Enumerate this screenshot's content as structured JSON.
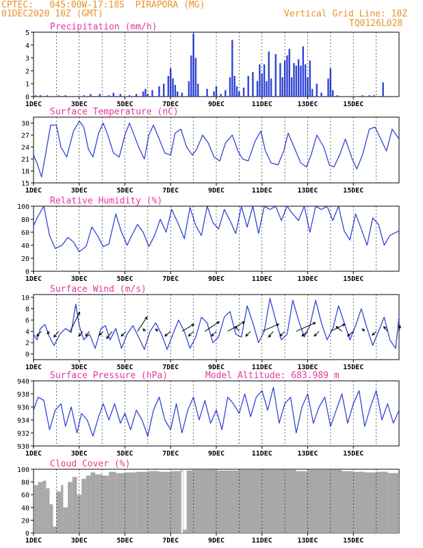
{
  "header": {
    "station": "CPTEC:   045:00W-17:18S  PIRAPORA (MG)",
    "run_date": "01DEC2020 10Z (GMT)",
    "grid_note": "Vertical Grid Line: 10Z",
    "model_code": "TQ0126L028"
  },
  "colors": {
    "header": "#e8902a",
    "title": "#e8359a",
    "line": "#2f43d6",
    "bar": "#2f43d6",
    "cloud": "#a8a8a8"
  },
  "x_ticks": [
    "1DEC",
    "3DEC",
    "5DEC",
    "7DEC",
    "9DEC",
    "11DEC",
    "13DEC",
    "15DEC"
  ],
  "chart_data": [
    {
      "id": "precip",
      "type": "bar",
      "title": "Precipitation (mm/h)",
      "ylim": [
        0,
        5
      ],
      "yticks": [
        0,
        1,
        2,
        3,
        4,
        5
      ],
      "x_days": [
        0.1,
        0.3,
        0.6,
        1.1,
        1.4,
        2.2,
        2.5,
        2.9,
        3.3,
        3.5,
        3.8,
        4.2,
        4.5,
        4.8,
        4.9,
        5.0,
        5.2,
        5.5,
        5.7,
        5.9,
        6.0,
        6.1,
        6.2,
        6.3,
        6.5,
        6.8,
        6.9,
        7.0,
        7.1,
        7.2,
        7.6,
        7.9,
        8.0,
        8.2,
        8.4,
        8.6,
        8.7,
        8.8,
        8.9,
        9.0,
        9.2,
        9.4,
        9.6,
        9.8,
        9.9,
        10.0,
        10.1,
        10.2,
        10.3,
        10.4,
        10.6,
        10.8,
        10.9,
        11.0,
        11.1,
        11.2,
        11.3,
        11.4,
        11.5,
        11.6,
        11.7,
        11.8,
        11.9,
        12.0,
        12.1,
        12.2,
        12.4,
        12.6,
        12.9,
        13.0,
        13.1,
        13.3,
        14.4,
        14.7,
        14.9,
        15.3
      ],
      "values": [
        0.1,
        0.1,
        0.1,
        0.1,
        0.1,
        0.1,
        0.2,
        0.2,
        0.1,
        0.3,
        0.2,
        0.1,
        0.2,
        0.4,
        0.6,
        0.2,
        0.5,
        0.8,
        1.0,
        1.6,
        2.2,
        1.4,
        0.9,
        0.4,
        0.3,
        1.2,
        3.2,
        4.9,
        3.0,
        1.0,
        0.6,
        0.4,
        0.8,
        0.2,
        0.5,
        1.5,
        4.4,
        1.6,
        0.8,
        0.4,
        0.7,
        1.6,
        1.9,
        1.2,
        2.5,
        1.8,
        2.5,
        1.2,
        3.5,
        1.4,
        3.3,
        2.6,
        1.5,
        2.8,
        3.2,
        3.7,
        1.5,
        2.6,
        2.4,
        2.9,
        2.4,
        3.9,
        2.5,
        1.5,
        2.8,
        0.6,
        1.0,
        0.3,
        1.4,
        2.2,
        0.5,
        0.1,
        0.1,
        0.1,
        0.1,
        1.1
      ]
    },
    {
      "id": "temp",
      "type": "line",
      "title": "Surface Temperature (nC)",
      "ylim": [
        15,
        31.5
      ],
      "yticks": [
        15,
        18,
        21,
        24,
        27,
        30
      ],
      "x_days": [
        0,
        0.15,
        0.35,
        0.55,
        0.75,
        1.0,
        1.2,
        1.45,
        1.75,
        2.0,
        2.2,
        2.4,
        2.6,
        2.85,
        3.05,
        3.25,
        3.5,
        3.75,
        4.0,
        4.2,
        4.4,
        4.6,
        4.85,
        5.05,
        5.25,
        5.5,
        5.75,
        6.0,
        6.2,
        6.45,
        6.7,
        6.95,
        7.15,
        7.4,
        7.65,
        7.9,
        8.15,
        8.4,
        8.7,
        8.95,
        9.15,
        9.4,
        9.7,
        9.95,
        10.15,
        10.4,
        10.7,
        10.95,
        11.15,
        11.4,
        11.7,
        11.95,
        12.15,
        12.4,
        12.7,
        12.95,
        13.15,
        13.4,
        13.65,
        13.95,
        14.15,
        14.4,
        14.7,
        14.95,
        15.2,
        15.45,
        15.7,
        16.0
      ],
      "values": [
        22,
        20,
        16.5,
        23,
        29.5,
        29.5,
        24,
        21.5,
        28,
        30.5,
        29,
        23.5,
        21.5,
        27.5,
        30,
        27,
        22.5,
        21.5,
        27,
        30,
        27,
        24,
        21,
        27,
        29.5,
        26,
        22.5,
        22,
        27.5,
        28.5,
        24,
        22,
        23.5,
        27,
        25,
        21.5,
        20.5,
        25,
        27,
        23,
        21,
        20.5,
        25.5,
        28,
        23,
        20,
        19.5,
        23,
        27.5,
        24,
        20,
        19,
        22,
        27,
        24,
        19.5,
        19,
        22,
        26,
        21,
        18.5,
        22,
        28.5,
        29,
        26,
        23,
        28.5,
        26
      ]
    },
    {
      "id": "rh",
      "type": "line",
      "title": "Relative Humidity (%)",
      "ylim": [
        0,
        100
      ],
      "yticks": [
        0,
        20,
        40,
        60,
        80,
        100
      ],
      "x_days": [
        0,
        0.2,
        0.45,
        0.7,
        0.95,
        1.25,
        1.5,
        1.75,
        2.0,
        2.3,
        2.55,
        2.8,
        3.05,
        3.3,
        3.6,
        3.85,
        4.1,
        4.3,
        4.55,
        4.8,
        5.05,
        5.3,
        5.55,
        5.8,
        6.05,
        6.35,
        6.6,
        6.85,
        7.1,
        7.35,
        7.6,
        7.85,
        8.1,
        8.35,
        8.6,
        8.85,
        9.1,
        9.35,
        9.6,
        9.85,
        10.1,
        10.35,
        10.6,
        10.85,
        11.1,
        11.35,
        11.6,
        11.85,
        12.1,
        12.35,
        12.6,
        12.85,
        13.1,
        13.35,
        13.6,
        13.85,
        14.1,
        14.35,
        14.6,
        14.85,
        15.1,
        15.35,
        15.6,
        16.0
      ],
      "values": [
        70,
        85,
        100,
        55,
        35,
        40,
        52,
        45,
        30,
        38,
        68,
        55,
        38,
        42,
        88,
        60,
        40,
        55,
        72,
        60,
        38,
        55,
        80,
        60,
        95,
        72,
        50,
        98,
        70,
        55,
        100,
        75,
        65,
        95,
        78,
        58,
        100,
        68,
        100,
        58,
        100,
        95,
        100,
        78,
        100,
        88,
        78,
        100,
        60,
        100,
        95,
        100,
        78,
        100,
        62,
        48,
        88,
        65,
        40,
        82,
        72,
        40,
        55,
        62
      ]
    },
    {
      "id": "wind",
      "type": "line",
      "title": "Surface Wind (m/s)",
      "ylim": [
        -1,
        10.5
      ],
      "yticks": [
        0,
        2,
        4,
        6,
        8,
        10
      ],
      "x_days": [
        0,
        0.15,
        0.3,
        0.5,
        0.7,
        0.9,
        1.15,
        1.4,
        1.65,
        1.85,
        2.0,
        2.2,
        2.45,
        2.7,
        2.95,
        3.15,
        3.35,
        3.6,
        3.85,
        4.1,
        4.35,
        4.6,
        4.85,
        5.1,
        5.35,
        5.6,
        5.85,
        6.1,
        6.35,
        6.6,
        6.85,
        7.1,
        7.35,
        7.6,
        7.85,
        8.1,
        8.35,
        8.6,
        8.85,
        9.1,
        9.35,
        9.6,
        9.85,
        10.1,
        10.35,
        10.6,
        10.85,
        11.1,
        11.35,
        11.6,
        11.85,
        12.1,
        12.35,
        12.6,
        12.85,
        13.1,
        13.35,
        13.6,
        13.85,
        14.1,
        14.35,
        14.6,
        14.85,
        15.1,
        15.35,
        15.6,
        15.85,
        16.0
      ],
      "values": [
        3.5,
        2.5,
        4.5,
        5.2,
        3.0,
        1.5,
        3.5,
        4.5,
        3.8,
        8.8,
        5.0,
        2.5,
        3.5,
        1.0,
        4.5,
        5.0,
        2.5,
        4.5,
        1.0,
        3.5,
        5.0,
        3.0,
        0.8,
        4.0,
        5.5,
        3.5,
        0.8,
        3.5,
        6.0,
        4.0,
        1.0,
        3.0,
        6.5,
        5.5,
        2.0,
        3.0,
        6.5,
        7.5,
        3.5,
        3.0,
        8.5,
        5.5,
        2.0,
        4.0,
        9.8,
        6.0,
        2.5,
        3.5,
        9.5,
        6.0,
        3.0,
        5.0,
        9.5,
        5.5,
        2.5,
        4.5,
        8.5,
        5.5,
        2.5,
        5.0,
        8.0,
        4.5,
        1.5,
        4.0,
        6.5,
        2.5,
        1.0,
        6.5
      ],
      "arrows": {
        "x_days": [
          0.35,
          0.7,
          1.1,
          1.6,
          2.15,
          2.45,
          3.05,
          3.45,
          4.05,
          4.55,
          4.9,
          5.45,
          6.0,
          6.5,
          7.0,
          7.5,
          8.0,
          8.5,
          9.0,
          9.5,
          10.0,
          10.5,
          11.0,
          11.5,
          12.0,
          12.5,
          13.0,
          13.5,
          14.0,
          14.5,
          15.0,
          15.5,
          16.0
        ],
        "u": [
          -1,
          -0.5,
          -1,
          2,
          -0.8,
          -0.8,
          -0.8,
          -1.2,
          -1,
          2,
          -0.5,
          -0.5,
          -1.2,
          2.5,
          -1,
          3,
          -1,
          3.5,
          -0.8,
          -1,
          3.5,
          -1,
          -1,
          4,
          -1.2,
          -1,
          3,
          -1.2,
          -1.2,
          -0.5,
          -0.8,
          -0.8,
          0.2
        ],
        "v": [
          -1,
          -0.5,
          -1.2,
          4,
          -1,
          -1,
          -0.8,
          -1.5,
          -1,
          3,
          0.5,
          0.5,
          -1,
          1.5,
          -1,
          2,
          -1,
          2,
          1,
          -1,
          1.5,
          -1.2,
          -1,
          1.8,
          -1,
          -1,
          1.5,
          1,
          -1,
          0.5,
          -0.8,
          1,
          1.2
        ]
      }
    },
    {
      "id": "pres",
      "type": "line",
      "title": "Surface Pressure (hPa)",
      "annotation": "Model Altitude: 683.989 m",
      "ylim": [
        930,
        940
      ],
      "yticks": [
        930,
        932,
        934,
        936,
        938,
        940
      ],
      "x_days": [
        0,
        0.2,
        0.45,
        0.7,
        0.95,
        1.2,
        1.4,
        1.65,
        1.9,
        2.1,
        2.35,
        2.6,
        2.85,
        3.05,
        3.3,
        3.55,
        3.8,
        4.0,
        4.25,
        4.5,
        4.75,
        5.0,
        5.25,
        5.5,
        5.75,
        6.0,
        6.25,
        6.5,
        6.75,
        7.0,
        7.25,
        7.5,
        7.75,
        8.0,
        8.25,
        8.5,
        8.75,
        9.0,
        9.25,
        9.5,
        9.75,
        10.0,
        10.25,
        10.5,
        10.75,
        11.0,
        11.25,
        11.5,
        11.75,
        12.0,
        12.25,
        12.5,
        12.75,
        13.0,
        13.25,
        13.5,
        13.75,
        14.0,
        14.25,
        14.5,
        14.75,
        15.0,
        15.25,
        15.5,
        15.75,
        16.0
      ],
      "values": [
        935.5,
        937.5,
        937.0,
        932.5,
        935.5,
        936.5,
        933.0,
        936.0,
        932.0,
        935.0,
        934.0,
        931.5,
        934.5,
        936.5,
        934.0,
        936.5,
        933.5,
        935.0,
        932.5,
        935.5,
        934.0,
        931.5,
        935.5,
        937.5,
        934.0,
        932.5,
        936.5,
        932.0,
        935.5,
        937.5,
        934.0,
        937.0,
        933.5,
        935.5,
        932.5,
        937.5,
        936.5,
        935.0,
        938.0,
        934.5,
        937.5,
        938.5,
        935.5,
        939.0,
        933.5,
        936.5,
        937.5,
        932.0,
        936.0,
        938.0,
        933.5,
        936.0,
        937.5,
        933.0,
        935.5,
        938.0,
        933.5,
        936.5,
        938.5,
        933.0,
        936.0,
        938.5,
        934.0,
        936.5,
        933.5,
        935.5
      ]
    },
    {
      "id": "cloud",
      "type": "area",
      "title": "Cloud Cover (%)",
      "ylim": [
        0,
        100
      ],
      "yticks": [
        0,
        20,
        40,
        60,
        80,
        100
      ],
      "x_days": [
        0,
        0.2,
        0.4,
        0.55,
        0.7,
        0.85,
        1.0,
        1.2,
        1.3,
        1.5,
        1.7,
        1.9,
        2.1,
        2.3,
        2.5,
        2.7,
        3.0,
        3.3,
        3.6,
        4.0,
        4.5,
        5.0,
        5.5,
        6.0,
        6.4,
        6.55,
        6.7,
        7.0,
        8.0,
        9.0,
        10.0,
        11.0,
        11.5,
        12.0,
        13.0,
        13.5,
        14.0,
        14.5,
        15.0,
        15.5,
        16.0
      ],
      "values": [
        75,
        80,
        82,
        70,
        45,
        10,
        65,
        75,
        40,
        80,
        88,
        60,
        85,
        90,
        95,
        92,
        90,
        96,
        94,
        95,
        96,
        97,
        96,
        97,
        98,
        5,
        98,
        99,
        98,
        99,
        99,
        99,
        97,
        99,
        99,
        97,
        96,
        95,
        96,
        94,
        98
      ]
    }
  ]
}
